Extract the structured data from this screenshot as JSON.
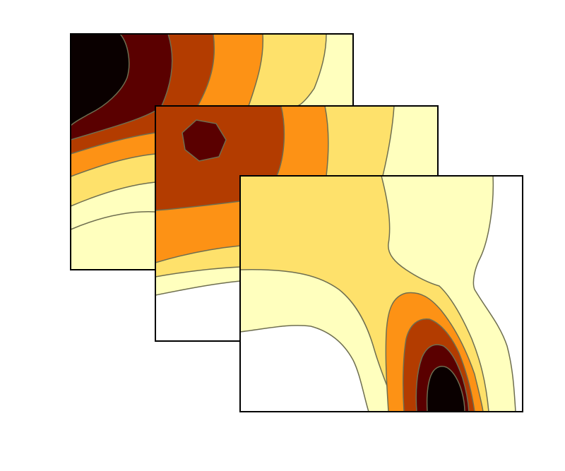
{
  "chart_data": [
    {
      "type": "contour",
      "panel": "back",
      "levels": 7,
      "colormap": [
        "#ffffff",
        "#ffffbe",
        "#fee16b",
        "#fd9215",
        "#b33c00",
        "#5a0000",
        "#0a0000"
      ],
      "contour_line_color": "#6e6e50",
      "peak_location": "top-left",
      "peak_level": 6
    },
    {
      "type": "contour",
      "panel": "middle",
      "levels": 6,
      "colormap": [
        "#ffffff",
        "#ffffbe",
        "#fee16b",
        "#fd9215",
        "#b33c00",
        "#5a0000"
      ],
      "contour_line_color": "#6e6e50",
      "peak_location": "upper-left",
      "peak_level": 5
    },
    {
      "type": "contour",
      "panel": "front",
      "levels": 7,
      "colormap": [
        "#ffffff",
        "#ffffbe",
        "#fee16b",
        "#fd9215",
        "#b33c00",
        "#5a0000",
        "#0a0000"
      ],
      "contour_line_color": "#6e6e50",
      "peak_location": "bottom-right",
      "peak_level": 6
    }
  ]
}
